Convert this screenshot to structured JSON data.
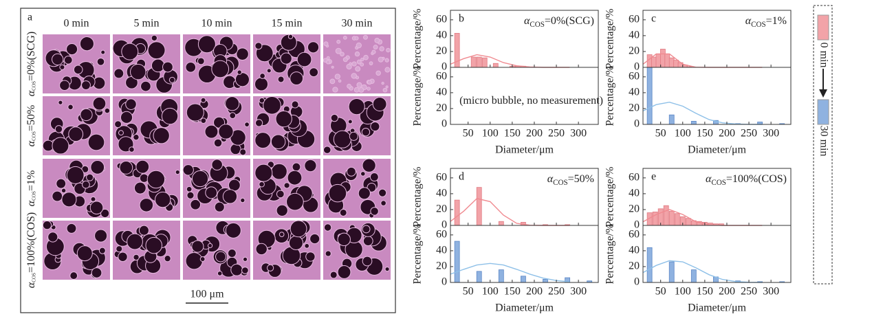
{
  "panel_a": {
    "label": "a",
    "columns": [
      "0 min",
      "5 min",
      "10 min",
      "15 min",
      "30 min"
    ],
    "rows": [
      {
        "symbol": "α",
        "subscript": "COS",
        "rest": "=0%(SCG)"
      },
      {
        "symbol": "α",
        "subscript": "COS",
        "rest": "=50%"
      },
      {
        "symbol": "α",
        "subscript": "COS",
        "rest": "=1%"
      },
      {
        "symbol": "α",
        "subscript": "COS",
        "rest": "=100%(COS)"
      }
    ],
    "scale_bar": "100 μm"
  },
  "legend": [
    {
      "name": "0 min",
      "color": "#f2a3a8"
    },
    {
      "name": "30 min",
      "color": "#8fb2e0"
    }
  ],
  "chart_data": [
    {
      "type": "bar",
      "label": "b",
      "annotation": {
        "symbol": "α",
        "subscript": "COS",
        "rest": "=0%(SCG)"
      },
      "x_label": "Diameter/μm",
      "xlim": [
        10,
        345
      ],
      "xticks": [
        50,
        100,
        150,
        200,
        250,
        300
      ],
      "subplots": [
        {
          "y_label": "Percentage/%",
          "ylim": [
            0,
            72
          ],
          "yticks": [
            0,
            20,
            40,
            60
          ],
          "color": "#f2a3a8",
          "x": [
            25,
            62.5,
            75,
            87.5,
            112.5,
            150,
            162.5,
            175
          ],
          "values": [
            43,
            13,
            13,
            12,
            5,
            1.5,
            1.5,
            1.5
          ],
          "fit": {
            "color": "#f08a90",
            "x": [
              10,
              40,
              70,
              100,
              130,
              160,
              190,
              220,
              250,
              280
            ],
            "values": [
              4,
              11,
              16,
              13,
              6,
              2,
              0.5,
              0,
              0,
              0
            ]
          }
        },
        {
          "y_label": "Percentage/%",
          "ylim": [
            0,
            72
          ],
          "yticks": [
            0,
            20,
            40,
            60
          ],
          "color": "#8fb2e0",
          "x": [],
          "values": [],
          "note": "(micro bubble, no measurement)"
        }
      ]
    },
    {
      "type": "bar",
      "label": "c",
      "annotation": {
        "symbol": "α",
        "subscript": "COS",
        "rest": "=1%"
      },
      "x_label": "Diameter/μm",
      "xlim": [
        10,
        345
      ],
      "xticks": [
        50,
        100,
        150,
        200,
        250,
        300
      ],
      "subplots": [
        {
          "y_label": "Percentage/%",
          "ylim": [
            0,
            72
          ],
          "yticks": [
            0,
            20,
            40,
            60
          ],
          "color": "#f2a3a8",
          "x": [
            25,
            35,
            45,
            55,
            65,
            75,
            85,
            95,
            105,
            115
          ],
          "values": [
            16,
            13,
            17,
            23,
            17,
            12,
            9,
            6,
            3,
            1
          ],
          "fit": {
            "color": "#f08a90",
            "x": [
              10,
              40,
              70,
              100,
              130,
              160,
              190,
              220,
              250,
              280
            ],
            "values": [
              4,
              17,
              17,
              4,
              0.2,
              0,
              0,
              0,
              0,
              0
            ]
          }
        },
        {
          "y_label": "Percentage/%",
          "ylim": [
            0,
            72
          ],
          "yticks": [
            0,
            20,
            40,
            60
          ],
          "color": "#8fb2e0",
          "x": [
            25,
            75,
            125,
            175,
            225,
            275,
            325
          ],
          "values": [
            72,
            12,
            4,
            5,
            1,
            3,
            1
          ],
          "fit": {
            "color": "#8ec0e8",
            "x": [
              10,
              40,
              70,
              100,
              130,
              160,
              190,
              220,
              250,
              280
            ],
            "values": [
              17,
              25,
              28,
              23,
              14,
              6,
              2,
              0.5,
              0.1,
              0
            ]
          }
        }
      ]
    },
    {
      "type": "bar",
      "label": "d",
      "annotation": {
        "symbol": "α",
        "subscript": "COS",
        "rest": "=50%"
      },
      "x_label": "Diameter/μm",
      "xlim": [
        10,
        345
      ],
      "xticks": [
        50,
        100,
        150,
        200,
        250,
        300
      ],
      "subplots": [
        {
          "y_label": "Percentage/%",
          "ylim": [
            0,
            72
          ],
          "yticks": [
            0,
            20,
            40,
            60
          ],
          "color": "#f2a3a8",
          "x": [
            25,
            75,
            125,
            175,
            225,
            275
          ],
          "values": [
            32,
            48,
            5,
            4,
            1,
            1
          ],
          "fit": {
            "color": "#f08a90",
            "x": [
              10,
              40,
              70,
              100,
              130,
              160,
              190,
              220,
              250,
              280
            ],
            "values": [
              5,
              18,
              34,
              30,
              13,
              2.6,
              0.3,
              0,
              0,
              0
            ]
          }
        },
        {
          "y_label": "Percentage/%",
          "ylim": [
            0,
            72
          ],
          "yticks": [
            0,
            20,
            40,
            60
          ],
          "color": "#8fb2e0",
          "x": [
            25,
            75,
            125,
            175,
            225,
            275,
            325
          ],
          "values": [
            52,
            14,
            16,
            8,
            4,
            6,
            2
          ],
          "fit": {
            "color": "#8ec0e8",
            "x": [
              10,
              40,
              70,
              100,
              130,
              160,
              190,
              220,
              250,
              280
            ],
            "values": [
              10.5,
              16.6,
              22,
              24,
              22,
              16.6,
              10.5,
              5.5,
              2.4,
              0.9
            ]
          }
        }
      ]
    },
    {
      "type": "bar",
      "label": "e",
      "annotation": {
        "symbol": "α",
        "subscript": "COS",
        "rest": "=100%(COS)"
      },
      "x_label": "Diameter/μm",
      "xlim": [
        10,
        345
      ],
      "xticks": [
        50,
        100,
        150,
        200,
        250,
        300
      ],
      "subplots": [
        {
          "y_label": "Percentage/%",
          "ylim": [
            0,
            72
          ],
          "yticks": [
            0,
            20,
            40,
            60
          ],
          "color": "#f2a3a8",
          "x": [
            25,
            37.5,
            50,
            62.5,
            75,
            87.5,
            100,
            112.5,
            125,
            137.5,
            150,
            162.5,
            175,
            187.5
          ],
          "values": [
            16,
            17,
            21,
            25,
            18,
            15,
            11,
            9,
            6,
            5,
            4,
            3,
            2,
            2
          ],
          "fit": {
            "color": "#f08a90",
            "x": [
              10,
              40,
              70,
              100,
              130,
              160,
              190,
              220,
              250,
              280
            ],
            "values": [
              4.6,
              13.8,
              20,
              13.8,
              4.6,
              0.7,
              0,
              0,
              0,
              0
            ]
          }
        },
        {
          "y_label": "Percentage/%",
          "ylim": [
            0,
            72
          ],
          "yticks": [
            0,
            20,
            40,
            60
          ],
          "color": "#8fb2e0",
          "x": [
            25,
            75,
            125,
            175,
            225,
            275,
            325
          ],
          "values": [
            44,
            26,
            16,
            7,
            2,
            1,
            1
          ],
          "fit": {
            "color": "#8ec0e8",
            "x": [
              10,
              40,
              70,
              100,
              130,
              160,
              190,
              220,
              250,
              280
            ],
            "values": [
              12.5,
              21.5,
              27.5,
              26,
              18.5,
              9.7,
              3.8,
              1.1,
              0.3,
              0
            ]
          }
        }
      ]
    }
  ]
}
